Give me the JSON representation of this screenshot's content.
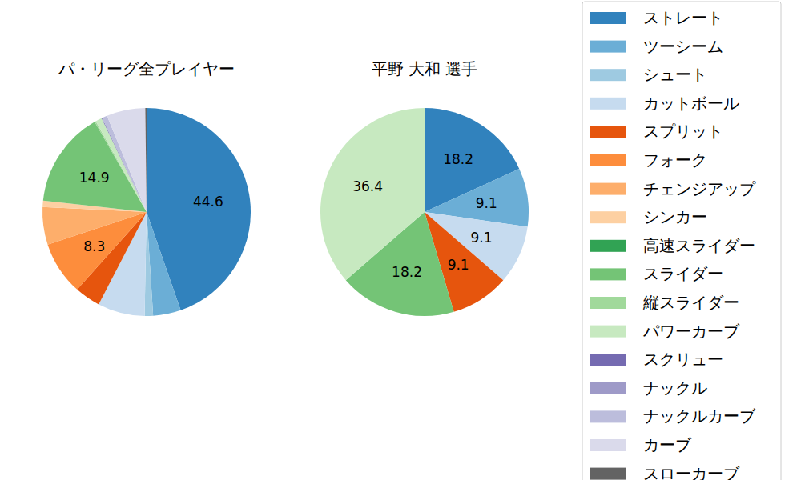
{
  "chart_data": {
    "type": "pie",
    "legend": "right",
    "categories": [
      "ストレート",
      "ツーシーム",
      "シュート",
      "カットボール",
      "スプリット",
      "フォーク",
      "チェンジアップ",
      "シンカー",
      "高速スライダー",
      "スライダー",
      "縦スライダー",
      "パワーカーブ",
      "スクリュー",
      "ナックル",
      "ナックルカーブ",
      "カーブ",
      "スローカーブ"
    ],
    "colors": [
      "#3182bd",
      "#6baed6",
      "#9ecae1",
      "#c6dbef",
      "#e6550d",
      "#fd8d3c",
      "#fdae6b",
      "#fdd0a2",
      "#31a354",
      "#74c476",
      "#a1d99b",
      "#c7e9c0",
      "#756bb1",
      "#9e9ac8",
      "#bcbddc",
      "#dadaeb",
      "#636363"
    ],
    "series": [
      {
        "name": "パ・リーグ全プレイヤー",
        "values": [
          44.6,
          4.3,
          1.3,
          7.3,
          4.0,
          8.3,
          5.8,
          1.0,
          0,
          14.9,
          0.2,
          1.0,
          0.1,
          0,
          0.8,
          6.0,
          0.2
        ],
        "value_labels": [
          "44.6",
          null,
          null,
          null,
          null,
          "8.3",
          null,
          null,
          null,
          "14.9",
          null,
          null,
          null,
          null,
          null,
          null,
          null
        ]
      },
      {
        "name": "平野 大和  選手",
        "values": [
          18.2,
          9.1,
          0,
          9.1,
          9.1,
          0,
          0,
          0,
          0,
          18.2,
          0,
          36.4,
          0,
          0,
          0,
          0,
          0
        ],
        "value_labels": [
          "18.2",
          "9.1",
          null,
          "9.1",
          "9.1",
          null,
          null,
          null,
          null,
          "18.2",
          null,
          "36.4",
          null,
          null,
          null,
          null,
          null
        ]
      }
    ]
  }
}
